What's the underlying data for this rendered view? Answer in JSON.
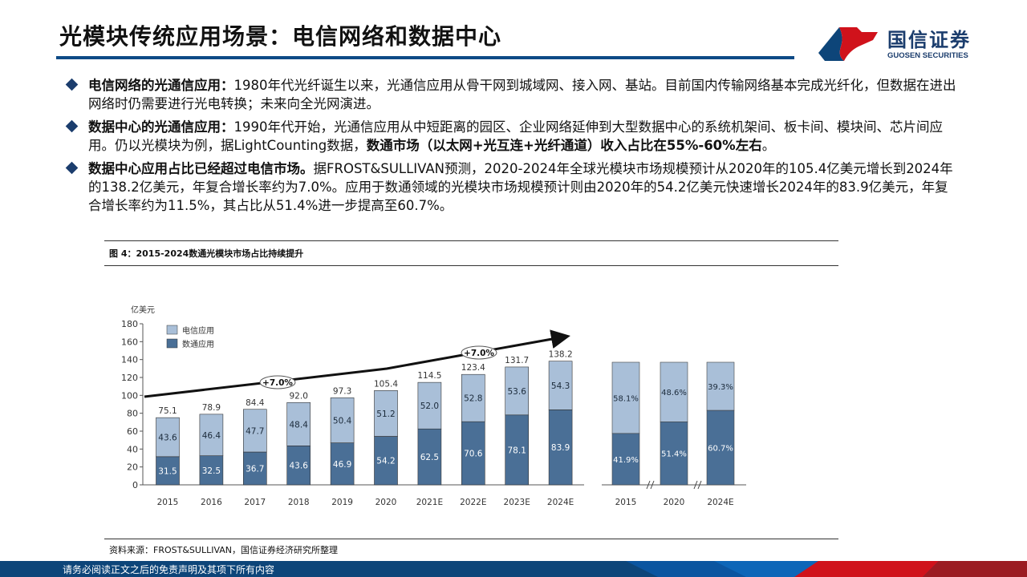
{
  "title": "光模块传统应用场景：电信网络和数据中心",
  "logo": {
    "cn": "国信证券",
    "en": "GUOSEN SECURITIES"
  },
  "bullets": [
    {
      "bold": "电信网络的光通信应用：",
      "text": "1980年代光纤诞生以来，光通信应用从骨干网到城域网、接入网、基站。目前国内传输网络基本完成光纤化，但数据在进出网络时仍需要进行光电转换；未来向全光网演进。",
      "bold2": "",
      "tail": ""
    },
    {
      "bold": "数据中心的光通信应用：",
      "text": "1990年代开始，光通信应用从中短距离的园区、企业网络延伸到大型数据中心的系统机架间、板卡间、模块间、芯片间应用。仍以光模块为例，据LightCounting数据，",
      "bold2": "数通市场（以太网+光互连+光纤通道）收入占比在55%-60%左右",
      "tail": "。"
    },
    {
      "bold": "数据中心应用占比已经超过电信市场。",
      "text": "据FROST&SULLIVAN预测，2020-2024年全球光模块市场规模预计从2020年的105.4亿美元增长到2024年的138.2亿美元，年复合增长率约为7.0%。应用于数通领域的光模块市场规模预计则由2020年的54.2亿美元快速增长2024年的83.9亿美元，年复合增长率约为11.5%，其占比从51.4%进一步提高至60.7%。",
      "bold2": "",
      "tail": ""
    }
  ],
  "figure_caption": "图 4：2015-2024数通光模块市场占比持续提升",
  "source": "资料来源：FROST&SULLIVAN，国信证券经济研究所整理",
  "footer": "请务必阅读正文之后的免责声明及其项下所有内容",
  "colors": {
    "telecom": "#a9bfd8",
    "datacom": "#4a6f96",
    "brand_blue": "#0d4579",
    "brand_red": "#d0121b"
  },
  "chart_data": [
    {
      "type": "bar",
      "stacked": true,
      "ylabel": "亿美元",
      "ylim": [
        0,
        180
      ],
      "yticks": [
        0,
        20,
        40,
        60,
        80,
        100,
        120,
        140,
        160,
        180
      ],
      "categories": [
        "2015",
        "2016",
        "2017",
        "2018",
        "2019",
        "2020",
        "2021E",
        "2022E",
        "2023E",
        "2024E"
      ],
      "series": [
        {
          "name": "数通应用",
          "values": [
            31.5,
            32.5,
            36.7,
            43.6,
            46.9,
            54.2,
            62.5,
            70.6,
            78.1,
            83.9
          ]
        },
        {
          "name": "电信应用",
          "values": [
            43.6,
            46.4,
            47.7,
            48.4,
            50.4,
            51.2,
            52.0,
            52.8,
            53.6,
            54.3
          ]
        }
      ],
      "totals": [
        75.1,
        78.9,
        84.4,
        92.0,
        97.3,
        105.4,
        114.5,
        123.4,
        131.7,
        138.2
      ],
      "annotations": [
        "+7.0%",
        "+7.0%"
      ],
      "legend": "top-left"
    },
    {
      "type": "bar",
      "stacked": true,
      "percent": true,
      "categories": [
        "2015",
        "2020",
        "2024E"
      ],
      "series": [
        {
          "name": "数通应用",
          "values": [
            "41.9%",
            "51.4%",
            "60.7%"
          ]
        },
        {
          "name": "电信应用",
          "values": [
            "58.1%",
            "48.6%",
            "39.3%"
          ]
        }
      ]
    }
  ]
}
